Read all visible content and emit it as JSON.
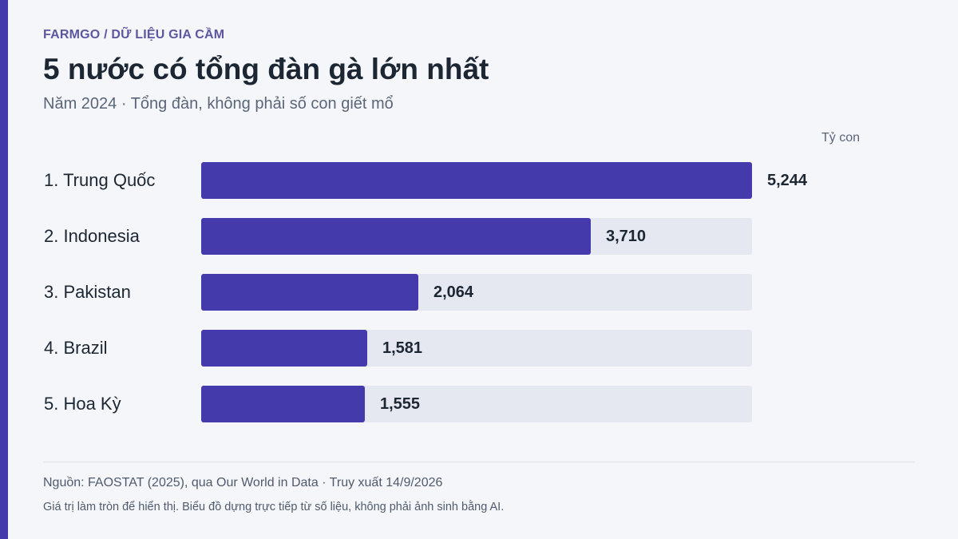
{
  "header": {
    "kicker": "FARMGO / DỮ LIỆU GIA CẦM",
    "title": "5 nước có tổng đàn gà lớn nhất",
    "subtitle": "Năm 2024 · Tổng đàn, không phải số con giết mổ"
  },
  "chart_data": {
    "type": "bar",
    "orientation": "horizontal",
    "unit_label": "Tỷ con",
    "categories": [
      "1. Trung Quốc",
      "2. Indonesia",
      "3. Pakistan",
      "4. Brazil",
      "5. Hoa Kỳ"
    ],
    "values": [
      5.244,
      3.71,
      2.064,
      1.581,
      1.555
    ],
    "value_labels": [
      "5,244",
      "3,710",
      "2,064",
      "1,581",
      "1,555"
    ],
    "xlim": [
      0,
      5.244
    ],
    "colors": {
      "bar": "#453aab",
      "track": "#e6e8f1",
      "accent": "#453aab"
    }
  },
  "footer": {
    "source": "Nguồn: FAOSTAT (2025), qua Our World in Data · Truy xuất 14/9/2026",
    "note": "Giá trị làm tròn để hiển thị. Biểu đồ dựng trực tiếp từ số liệu, không phải ảnh sinh bằng AI."
  }
}
